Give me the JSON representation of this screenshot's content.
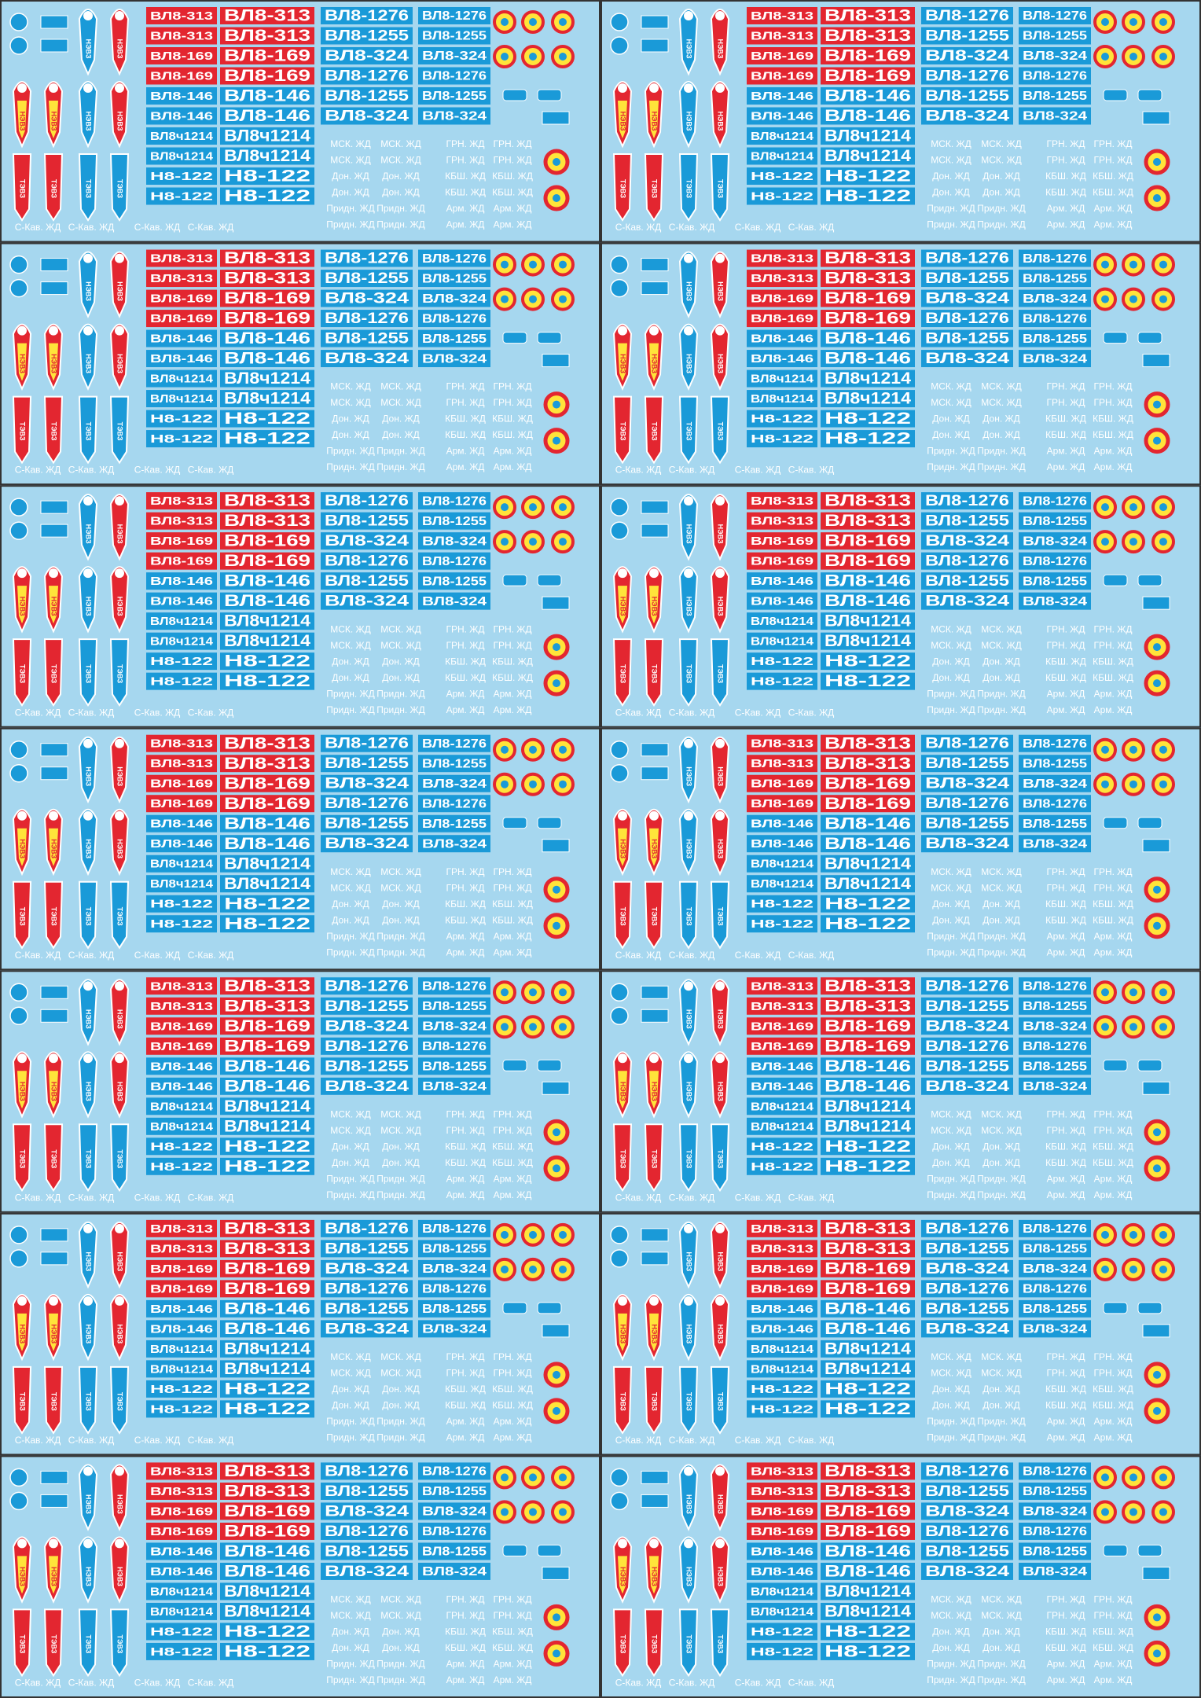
{
  "plate_columns": [
    [
      "ВЛ8-313",
      "ВЛ8-313",
      "ВЛ8-169",
      "ВЛ8-169",
      "ВЛ8-146",
      "ВЛ8-146",
      "ВЛ8ч1214",
      "ВЛ8ч1214",
      "Н8-122",
      "Н8-122"
    ],
    [
      "ВЛ8-313",
      "ВЛ8-313",
      "ВЛ8-169",
      "ВЛ8-169",
      "ВЛ8-146",
      "ВЛ8-146",
      "ВЛ8ч1214",
      "ВЛ8ч1214",
      "Н8-122",
      "Н8-122"
    ],
    [
      "ВЛ8-1276",
      "ВЛ8-1255",
      "ВЛ8-324",
      "ВЛ8-1276",
      "ВЛ8-1255",
      "ВЛ8-324"
    ],
    [
      "ВЛ8-1276",
      "ВЛ8-1255",
      "ВЛ8-324",
      "ВЛ8-1276",
      "ВЛ8-1255",
      "ВЛ8-324"
    ]
  ],
  "depot_rows": [
    [
      "МСК. ЖД",
      "МСК. ЖД",
      "ГРН. ЖД",
      "ГРН. ЖД"
    ],
    [
      "МСК. ЖД",
      "МСК. ЖД",
      "ГРН. ЖД",
      "ГРН. ЖД"
    ],
    [
      "Дон. ЖД",
      "Дон. ЖД",
      "КБШ. ЖД",
      "КБШ. ЖД"
    ],
    [
      "Дон. ЖД",
      "Дон. ЖД",
      "КБШ. ЖД",
      "КБШ. ЖД"
    ],
    [
      "Придн. ЖД",
      "Придн. ЖД",
      "Арм. ЖД",
      "Арм. ЖД"
    ],
    [
      "Придн. ЖД",
      "Придн. ЖД",
      "Арм. ЖД",
      "Арм. ЖД"
    ]
  ],
  "bottom_labels": [
    "С-Кав. ЖД",
    "С-Кав. ЖД",
    "С-Кав. ЖД",
    "С-Кав. ЖД"
  ],
  "emblem_labels": [
    "НЭВЗ",
    "ТЭВЗ"
  ]
}
